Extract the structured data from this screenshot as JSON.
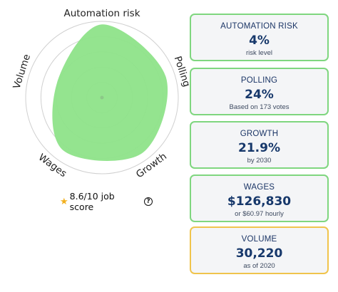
{
  "radar": {
    "axes": [
      {
        "label": "Automation risk",
        "value": 0.96
      },
      {
        "label": "Polling",
        "value": 0.88
      },
      {
        "label": "Growth",
        "value": 0.9
      },
      {
        "label": "Wages",
        "value": 0.86
      },
      {
        "label": "Volume",
        "value": 0.62
      }
    ],
    "fill_color": "#8ee389",
    "ring_color": "#d0d0d0"
  },
  "score": {
    "text": "8.6/10 job score",
    "star_icon": "star-icon",
    "help_icon": "question-circle-icon"
  },
  "cards": [
    {
      "title": "AUTOMATION RISK",
      "value": "4%",
      "subtitle": "risk level"
    },
    {
      "title": "POLLING",
      "value": "24%",
      "subtitle": "Based on 173 votes"
    },
    {
      "title": "GROWTH",
      "value": "21.9%",
      "subtitle": "by 2030"
    },
    {
      "title": "WAGES",
      "value": "$126,830",
      "subtitle": "or $60.97 hourly"
    },
    {
      "title": "VOLUME",
      "value": "30,220",
      "subtitle": "as of 2020"
    }
  ],
  "colors": {
    "card_border_green": "#7fd67f",
    "card_border_yellow": "#f0c44c",
    "card_text": "#1b3566"
  }
}
